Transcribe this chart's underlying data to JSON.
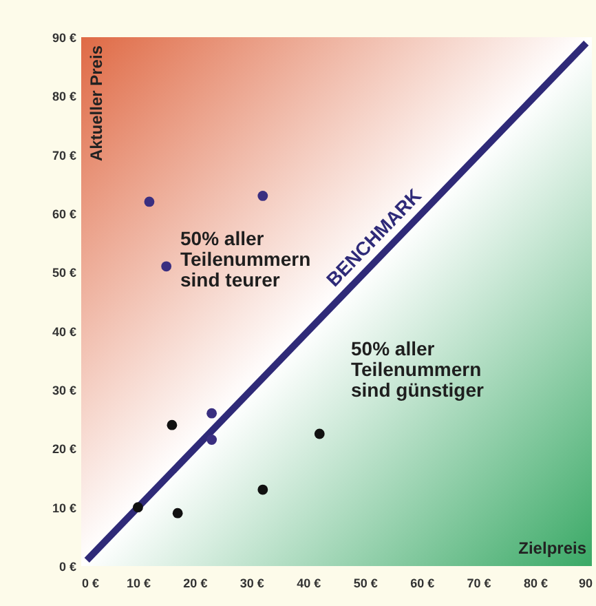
{
  "chart_data": {
    "type": "scatter",
    "xlabel": "Zielpreis",
    "ylabel": "Aktueller Preis",
    "annotations": [
      "50% aller\nTeilenummern\nsind teurer",
      "50% aller\nTeilenummern\nsind günstiger"
    ],
    "xlim": [
      0,
      90
    ],
    "ylim": [
      0,
      90
    ],
    "xticks": [
      {
        "value": 0,
        "label": "0 €"
      },
      {
        "value": 10,
        "label": "10 €"
      },
      {
        "value": 20,
        "label": "20 €"
      },
      {
        "value": 30,
        "label": "30 €"
      },
      {
        "value": 40,
        "label": "40 €"
      },
      {
        "value": 50,
        "label": "50 €"
      },
      {
        "value": 60,
        "label": "60 €"
      },
      {
        "value": 70,
        "label": "70 €"
      },
      {
        "value": 80,
        "label": "80 €"
      },
      {
        "value": 90,
        "label": "90"
      }
    ],
    "yticks": [
      {
        "value": 0,
        "label": "0 €"
      },
      {
        "value": 10,
        "label": "10 €"
      },
      {
        "value": 20,
        "label": "20 €"
      },
      {
        "value": 30,
        "label": "30 €"
      },
      {
        "value": 40,
        "label": "40 €"
      },
      {
        "value": 50,
        "label": "50 €"
      },
      {
        "value": 60,
        "label": "60 €"
      },
      {
        "value": 70,
        "label": "70 €"
      },
      {
        "value": 80,
        "label": "80 €"
      },
      {
        "value": 90,
        "label": "90 €"
      }
    ],
    "grid": false,
    "series": [
      {
        "color": "#3a2f80",
        "marker": "circle",
        "x": [
          12,
          32,
          15,
          23,
          23
        ],
        "values": [
          62,
          63,
          51,
          26,
          21.5
        ]
      },
      {
        "color": "#111111",
        "marker": "circle",
        "x": [
          16,
          10,
          17,
          32,
          42
        ],
        "values": [
          24,
          10,
          9,
          13,
          22.5
        ]
      },
      {
        "type": "line",
        "name": "BENCHMARK",
        "color": "#2f2a78",
        "line_style": "solid",
        "marker": "none",
        "x": [
          1,
          89
        ],
        "values": [
          1,
          89
        ]
      }
    ]
  }
}
